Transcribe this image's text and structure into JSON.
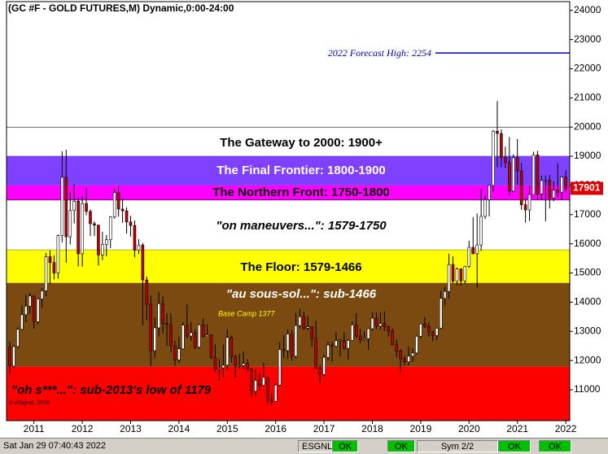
{
  "chart_data": {
    "type": "candlestick",
    "title": "(GC #F - GOLD FUTURES,M) Dynamic,0:00-24:00",
    "copyright": "© eSignal, 2016",
    "up_color": "#ffffff",
    "down_color": "#c00000",
    "ylim": [
      9940,
      24300
    ],
    "yticks": [
      11000,
      12000,
      13000,
      14000,
      15000,
      16000,
      17000,
      18000,
      19000,
      20000,
      21000,
      22000,
      23000,
      24000
    ],
    "categories": [
      null,
      null,
      null,
      null,
      null,
      null,
      "2011",
      null,
      null,
      null,
      null,
      null,
      null,
      null,
      null,
      null,
      null,
      null,
      "2012",
      null,
      null,
      null,
      null,
      null,
      null,
      null,
      null,
      null,
      null,
      null,
      "2013",
      null,
      null,
      null,
      null,
      null,
      null,
      null,
      null,
      null,
      null,
      null,
      "2014",
      null,
      null,
      null,
      null,
      null,
      null,
      null,
      null,
      null,
      null,
      null,
      "2015",
      null,
      null,
      null,
      null,
      null,
      null,
      null,
      null,
      null,
      null,
      null,
      "2016",
      null,
      null,
      null,
      null,
      null,
      null,
      null,
      null,
      null,
      null,
      null,
      "2017",
      null,
      null,
      null,
      null,
      null,
      null,
      null,
      null,
      null,
      null,
      null,
      "2018",
      null,
      null,
      null,
      null,
      null,
      null,
      null,
      null,
      null,
      null,
      null,
      "2019",
      null,
      null,
      null,
      null,
      null,
      null,
      null,
      null,
      null,
      null,
      null,
      "2020",
      null,
      null,
      null,
      null,
      null,
      null,
      null,
      null,
      null,
      null,
      null,
      "2021",
      null,
      null,
      null,
      null,
      null,
      null,
      null,
      null,
      null,
      null,
      null,
      "2022"
    ],
    "open": [
      12450,
      11810,
      12480,
      13070,
      13570,
      13860,
      14210,
      13330,
      14110,
      14390,
      15560,
      15360,
      15000,
      16280,
      18280,
      16240,
      17140,
      17460,
      15660,
      17380,
      17110,
      16690,
      16640,
      15620,
      15980,
      16140,
      16920,
      17760,
      17190,
      17130,
      16750,
      16630,
      15780,
      15960,
      14760,
      13930,
      12340,
      13120,
      13950,
      13270,
      13230,
      12500,
      12020,
      12400,
      13210,
      12840,
      12950,
      12460,
      13220,
      12820,
      12870,
      12100,
      11710,
      11750,
      11840,
      12790,
      12130,
      11830,
      11830,
      11900,
      11720,
      10950,
      11320,
      11150,
      11420,
      10640,
      10600,
      11160,
      12380,
      12340,
      12910,
      12150,
      13200,
      13500,
      13110,
      13160,
      12760,
      11730,
      11520,
      12110,
      12530,
      12490,
      12680,
      12690,
      12420,
      12690,
      13220,
      12840,
      12710,
      12750,
      13090,
      13450,
      13180,
      13270,
      13160,
      13010,
      12540,
      12330,
      12060,
      11960,
      12150,
      12260,
      12830,
      13250,
      13160,
      12980,
      12860,
      13110,
      14130,
      14370,
      15290,
      14720,
      15140,
      14730,
      15230,
      15880,
      15660,
      15960,
      16940,
      17510,
      18000,
      19860,
      19780,
      18950,
      18790,
      17810,
      18950,
      18500,
      17340,
      17160,
      17690,
      19050,
      17710,
      18170,
      18180,
      17570,
      17840,
      17760,
      18290
    ],
    "high": [
      12650,
      12520,
      13150,
      13880,
      14240,
      14320,
      14230,
      14130,
      14480,
      15690,
      15770,
      15600,
      16320,
      19170,
      19230,
      17780,
      18040,
      17600,
      17640,
      17910,
      17180,
      16770,
      16660,
      16410,
      16300,
      16950,
      17880,
      17980,
      17550,
      17250,
      16960,
      16800,
      16160,
      16030,
      14880,
      14240,
      13480,
      14340,
      14210,
      13620,
      13610,
      12670,
      12800,
      13320,
      13920,
      13320,
      13070,
      13250,
      13450,
      13240,
      12900,
      12550,
      12050,
      12550,
      13070,
      12850,
      12190,
      12240,
      12320,
      12050,
      11740,
      11700,
      11570,
      11920,
      11420,
      10880,
      11240,
      12630,
      12870,
      13070,
      13050,
      13620,
      13770,
      13680,
      13520,
      13180,
      13370,
      11840,
      12200,
      12640,
      12650,
      12970,
      12750,
      12960,
      12740,
      13330,
      13620,
      13080,
      12990,
      13100,
      13660,
      13650,
      13650,
      13690,
      13190,
      13090,
      12720,
      12390,
      12150,
      12480,
      12430,
      12870,
      13260,
      13490,
      13310,
      13020,
      13130,
      14390,
      14530,
      15660,
      15570,
      15190,
      15160,
      15250,
      16110,
      16920,
      17040,
      17880,
      17650,
      18000,
      19910,
      20890,
      19920,
      19330,
      19660,
      19070,
      19590,
      18770,
      17560,
      17990,
      19160,
      19190,
      18340,
      18340,
      18360,
      18140,
      18770,
      18310,
      18530
    ],
    "low": [
      11560,
      11760,
      12420,
      13040,
      13310,
      13600,
      13090,
      13240,
      13810,
      14210,
      14620,
      14780,
      14800,
      16050,
      15350,
      15980,
      16700,
      15230,
      15220,
      16980,
      16270,
      16270,
      15260,
      15440,
      15570,
      15850,
      16860,
      16930,
      16720,
      16350,
      16250,
      15540,
      15650,
      13210,
      13380,
      11800,
      12080,
      12820,
      12920,
      12510,
      12290,
      11820,
      11920,
      12370,
      12770,
      12680,
      12400,
      12400,
      12800,
      12810,
      12050,
      11600,
      11310,
      11420,
      11670,
      11940,
      11420,
      11720,
      11700,
      11620,
      10770,
      10800,
      10980,
      11120,
      10520,
      10460,
      10610,
      11110,
      12080,
      12060,
      11990,
      12080,
      13100,
      13060,
      13050,
      12480,
      11710,
      11240,
      11460,
      12000,
      11950,
      12450,
      12140,
      12370,
      12040,
      12670,
      12770,
      12600,
      12660,
      12360,
      13030,
      13070,
      13060,
      13020,
      12820,
      12530,
      12110,
      11610,
      11830,
      11820,
      11960,
      12210,
      12760,
      13110,
      12810,
      12660,
      12700,
      13100,
      13880,
      14120,
      14650,
      14580,
      14560,
      14620,
      15170,
      15640,
      14500,
      15760,
      16850,
      16940,
      17780,
      18630,
      18630,
      18600,
      17640,
      17770,
      18020,
      17170,
      16730,
      16780,
      17690,
      17500,
      17500,
      16770,
      17210,
      17460,
      17590,
      17520,
      17800
    ],
    "close": [
      11810,
      12480,
      13070,
      13570,
      13860,
      14210,
      13330,
      14110,
      14390,
      15560,
      15360,
      15000,
      16280,
      18280,
      16240,
      17140,
      17460,
      15660,
      17380,
      17110,
      16690,
      16640,
      15620,
      15980,
      16140,
      16920,
      17760,
      17190,
      17130,
      16750,
      16630,
      15780,
      15960,
      14760,
      13930,
      12340,
      13120,
      13950,
      13270,
      13230,
      12500,
      12020,
      12400,
      13210,
      12840,
      12950,
      12460,
      13220,
      12820,
      12870,
      12100,
      11710,
      11750,
      11840,
      12790,
      12130,
      11830,
      11830,
      11900,
      11720,
      10950,
      11320,
      11150,
      11420,
      10640,
      10600,
      11160,
      12380,
      12340,
      12910,
      12150,
      13200,
      13500,
      13110,
      13160,
      12760,
      11730,
      11520,
      12110,
      12530,
      12490,
      12680,
      12690,
      12420,
      12690,
      13220,
      12840,
      12710,
      12750,
      13090,
      13450,
      13180,
      13270,
      13160,
      13010,
      12540,
      12330,
      12060,
      11960,
      12150,
      12260,
      12830,
      13250,
      13160,
      12980,
      12860,
      13110,
      14130,
      14370,
      15290,
      14720,
      15140,
      14730,
      15230,
      15880,
      15660,
      15960,
      16940,
      17510,
      18000,
      19860,
      19780,
      18950,
      18790,
      17810,
      18950,
      18500,
      17340,
      17160,
      17690,
      19050,
      17710,
      18170,
      18180,
      17570,
      17840,
      17760,
      18290,
      17901
    ],
    "zones": [
      {
        "label": "The Gateway to 2000:  1900+",
        "top": 20000,
        "bottom": 19000,
        "color": "#ffffff",
        "text_color": "#000000"
      },
      {
        "label": "The Final Frontier:  1800-1900",
        "top": 19000,
        "bottom": 18000,
        "color": "#8040ff",
        "text_color": "#ffffff"
      },
      {
        "label": "The Northern Front:  1750-1800",
        "top": 18000,
        "bottom": 17500,
        "color": "#ff00ff",
        "text_color": "#000000"
      },
      {
        "label": "\"on maneuvers...\":  1579-1750",
        "top": 17500,
        "bottom": 15790,
        "color": "#ffffff",
        "text_color": "#000000"
      },
      {
        "label": "The Floor:  1579-1466",
        "top": 15790,
        "bottom": 14660,
        "color": "#ffff00",
        "text_color": "#000000"
      },
      {
        "label": "\"au sous-sol...\":  sub-1466",
        "top": 14660,
        "bottom": 11790,
        "color": "#7a4a10",
        "text_color": "#ffffff"
      },
      {
        "label": "\"oh s***...\":  sub-2013's low of 1179",
        "top": 11790,
        "color": "#ff0000",
        "text_color": "#000000"
      }
    ],
    "forecast": {
      "label": "2022 Forecast High:  2254",
      "value": 22540,
      "color": "#0000c0"
    },
    "annotations": [
      "Base Camp 1377"
    ]
  },
  "status_bar": {
    "datetime": "Sat Jan 29 07:40:43 2022",
    "feed": "ESGNL:",
    "feed_status": "OK",
    "ok_1": "OK",
    "symbols": "Sym 2/2",
    "ok_2": "OK",
    "ok_3": "OK"
  }
}
